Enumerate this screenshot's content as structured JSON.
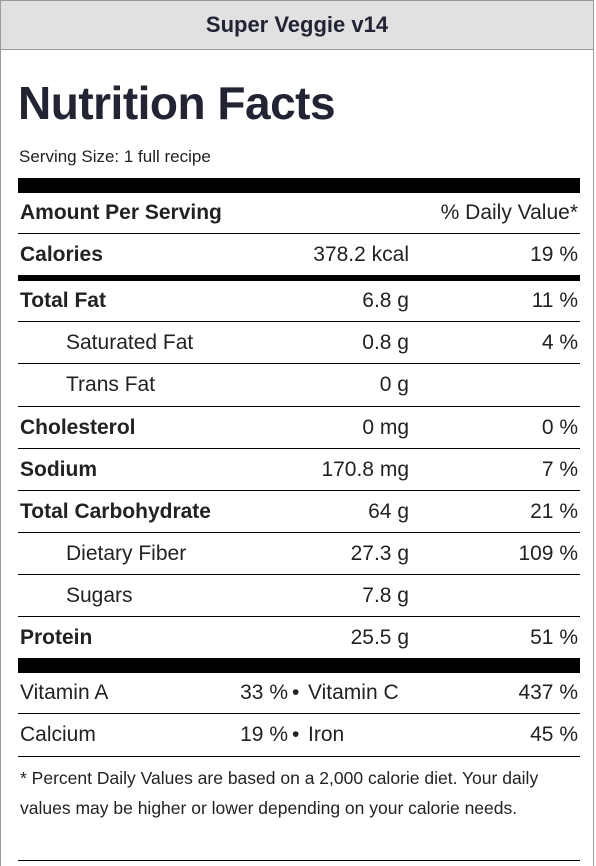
{
  "header": {
    "title": "Super Veggie v14"
  },
  "label": {
    "heading": "Nutrition Facts",
    "serving_size": "Serving Size: 1 full recipe",
    "amount_per_serving": "Amount Per Serving",
    "daily_value_header": "% Daily Value*"
  },
  "nutrients": [
    {
      "name": "Calories",
      "amount": "378.2 kcal",
      "dv": "19 %"
    },
    {
      "name": "Total Fat",
      "amount": "6.8 g",
      "dv": "11 %"
    },
    {
      "name": "Saturated Fat",
      "amount": "0.8 g",
      "dv": "4 %"
    },
    {
      "name": "Trans Fat",
      "amount": "0 g",
      "dv": ""
    },
    {
      "name": "Cholesterol",
      "amount": "0 mg",
      "dv": "0 %"
    },
    {
      "name": "Sodium",
      "amount": "170.8 mg",
      "dv": "7 %"
    },
    {
      "name": "Total Carbohydrate",
      "amount": "64 g",
      "dv": "21 %"
    },
    {
      "name": "Dietary Fiber",
      "amount": "27.3 g",
      "dv": "109 %"
    },
    {
      "name": "Sugars",
      "amount": "7.8 g",
      "dv": ""
    },
    {
      "name": "Protein",
      "amount": "25.5 g",
      "dv": "51 %"
    }
  ],
  "vitamins": [
    {
      "name1": "Vitamin A",
      "value1": "33 %",
      "name2": "Vitamin C",
      "value2": "437 %"
    },
    {
      "name1": "Calcium",
      "value1": "19 %",
      "name2": "Iron",
      "value2": "45 %"
    }
  ],
  "separator": "•",
  "footnote": "* Percent Daily Values are based on a 2,000 calorie diet. Your daily values may be higher or lower depending on your calorie needs."
}
